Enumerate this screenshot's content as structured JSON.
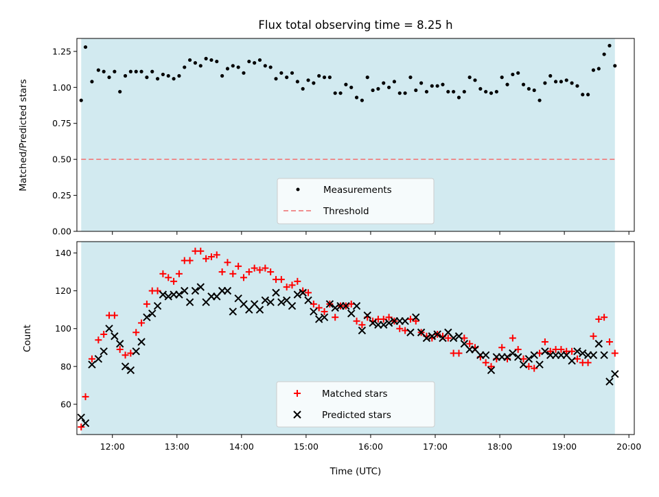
{
  "chart_data": [
    {
      "type": "scatter",
      "title": "Flux total observing time = 8.25 h",
      "xlabel": "",
      "ylabel": "Matched/Predicted stars",
      "xlim": [
        "11:27",
        "20:05"
      ],
      "ylim": [
        0,
        1.34
      ],
      "yticks": [
        "0.00",
        "0.25",
        "0.50",
        "0.75",
        "1.00",
        "1.25"
      ],
      "xticks": [
        "12:00",
        "13:00",
        "14:00",
        "15:00",
        "16:00",
        "17:00",
        "18:00",
        "19:00",
        "20:00"
      ],
      "observing_window": [
        "11:31",
        "19:47"
      ],
      "window_color": "#d2eaf0",
      "threshold": 0.5,
      "threshold_color": "#f08080",
      "legend_position": "lower-center",
      "series": [
        {
          "name": "Measurements",
          "color": "#000000",
          "marker": "dot",
          "x": [
            "11:31",
            "11:35",
            "11:41",
            "11:47",
            "11:52",
            "11:57",
            "12:02",
            "12:07",
            "12:12",
            "12:17",
            "12:22",
            "12:27",
            "12:32",
            "12:37",
            "12:42",
            "12:47",
            "12:52",
            "12:57",
            "13:02",
            "13:07",
            "13:12",
            "13:17",
            "13:22",
            "13:27",
            "13:32",
            "13:37",
            "13:42",
            "13:47",
            "13:52",
            "13:57",
            "14:02",
            "14:07",
            "14:12",
            "14:17",
            "14:22",
            "14:27",
            "14:32",
            "14:37",
            "14:42",
            "14:47",
            "14:52",
            "14:57",
            "15:02",
            "15:07",
            "15:12",
            "15:17",
            "15:22",
            "15:27",
            "15:32",
            "15:37",
            "15:42",
            "15:47",
            "15:52",
            "15:57",
            "16:02",
            "16:07",
            "16:12",
            "16:17",
            "16:22",
            "16:27",
            "16:32",
            "16:37",
            "16:42",
            "16:47",
            "16:52",
            "16:57",
            "17:02",
            "17:07",
            "17:12",
            "17:17",
            "17:22",
            "17:27",
            "17:32",
            "17:37",
            "17:42",
            "17:47",
            "17:52",
            "17:57",
            "18:02",
            "18:07",
            "18:12",
            "18:17",
            "18:22",
            "18:27",
            "18:32",
            "18:37",
            "18:42",
            "18:47",
            "18:52",
            "18:57",
            "19:02",
            "19:07",
            "19:12",
            "19:17",
            "19:22",
            "19:27",
            "19:32",
            "19:37",
            "19:42",
            "19:47"
          ],
          "y": [
            0.91,
            1.28,
            1.04,
            1.12,
            1.11,
            1.07,
            1.11,
            0.97,
            1.08,
            1.11,
            1.11,
            1.11,
            1.07,
            1.11,
            1.06,
            1.09,
            1.08,
            1.06,
            1.08,
            1.14,
            1.19,
            1.17,
            1.15,
            1.2,
            1.19,
            1.18,
            1.08,
            1.13,
            1.15,
            1.14,
            1.1,
            1.18,
            1.17,
            1.19,
            1.15,
            1.14,
            1.06,
            1.1,
            1.07,
            1.1,
            1.04,
            0.99,
            1.05,
            1.03,
            1.08,
            1.07,
            1.07,
            0.96,
            0.96,
            1.02,
            1.0,
            0.93,
            0.91,
            1.07,
            0.98,
            0.99,
            1.03,
            1.0,
            1.04,
            0.96,
            0.96,
            1.07,
            0.98,
            1.03,
            0.97,
            1.01,
            1.01,
            1.02,
            0.97,
            0.97,
            0.93,
            0.97,
            1.07,
            1.05,
            0.99,
            0.97,
            0.96,
            0.97,
            1.07,
            1.02,
            1.09,
            1.1,
            1.02,
            0.99,
            0.98,
            0.91,
            1.03,
            1.08,
            1.04,
            1.04,
            1.05,
            1.03,
            1.01,
            0.95,
            0.95,
            1.12,
            1.13,
            1.23,
            1.29,
            1.15
          ]
        },
        {
          "name": "Threshold",
          "color": "#f08080",
          "style": "dashed"
        }
      ]
    },
    {
      "type": "scatter",
      "title": "",
      "xlabel": "Time (UTC)",
      "ylabel": "Count",
      "xlim": [
        "11:27",
        "20:05"
      ],
      "ylim": [
        44,
        146
      ],
      "yticks": [
        "60",
        "80",
        "100",
        "120",
        "140"
      ],
      "xticks": [
        "12:00",
        "13:00",
        "14:00",
        "15:00",
        "16:00",
        "17:00",
        "18:00",
        "19:00",
        "20:00"
      ],
      "observing_window": [
        "11:31",
        "19:47"
      ],
      "window_color": "#d2eaf0",
      "legend_position": "lower-center",
      "series": [
        {
          "name": "Matched stars",
          "color": "#ff0000",
          "marker": "plus",
          "x": [
            "11:31",
            "11:35",
            "11:41",
            "11:47",
            "11:52",
            "11:57",
            "12:02",
            "12:07",
            "12:12",
            "12:17",
            "12:22",
            "12:27",
            "12:32",
            "12:37",
            "12:42",
            "12:47",
            "12:52",
            "12:57",
            "13:02",
            "13:07",
            "13:12",
            "13:17",
            "13:22",
            "13:27",
            "13:32",
            "13:37",
            "13:42",
            "13:47",
            "13:52",
            "13:57",
            "14:02",
            "14:07",
            "14:12",
            "14:17",
            "14:22",
            "14:27",
            "14:32",
            "14:37",
            "14:42",
            "14:47",
            "14:52",
            "14:57",
            "15:02",
            "15:07",
            "15:12",
            "15:17",
            "15:22",
            "15:27",
            "15:32",
            "15:37",
            "15:42",
            "15:47",
            "15:52",
            "15:57",
            "16:02",
            "16:07",
            "16:12",
            "16:17",
            "16:22",
            "16:27",
            "16:32",
            "16:37",
            "16:42",
            "16:47",
            "16:52",
            "16:57",
            "17:02",
            "17:07",
            "17:12",
            "17:17",
            "17:22",
            "17:27",
            "17:32",
            "17:37",
            "17:42",
            "17:47",
            "17:52",
            "17:57",
            "18:02",
            "18:07",
            "18:12",
            "18:17",
            "18:22",
            "18:27",
            "18:32",
            "18:37",
            "18:42",
            "18:47",
            "18:52",
            "18:57",
            "19:02",
            "19:07",
            "19:12",
            "19:17",
            "19:22",
            "19:27",
            "19:32",
            "19:37",
            "19:42",
            "19:47"
          ],
          "y": [
            48,
            64,
            84,
            94,
            97,
            107,
            107,
            89,
            86,
            87,
            98,
            103,
            113,
            120,
            120,
            129,
            127,
            125,
            129,
            136,
            136,
            141,
            141,
            137,
            138,
            139,
            130,
            135,
            129,
            133,
            127,
            130,
            132,
            131,
            132,
            130,
            126,
            126,
            122,
            123,
            125,
            120,
            119,
            113,
            111,
            109,
            113,
            106,
            112,
            112,
            113,
            104,
            102,
            106,
            104,
            105,
            105,
            106,
            104,
            100,
            99,
            105,
            104,
            98,
            96,
            95,
            97,
            96,
            95,
            87,
            87,
            95,
            92,
            90,
            85,
            82,
            80,
            84,
            90,
            84,
            95,
            89,
            84,
            80,
            79,
            87,
            93,
            88,
            89,
            89,
            88,
            88,
            84,
            82,
            82,
            96,
            105,
            106,
            93,
            87
          ]
        },
        {
          "name": "Predicted stars",
          "color": "#000000",
          "marker": "cross",
          "x": [
            "11:31",
            "11:35",
            "11:41",
            "11:47",
            "11:52",
            "11:57",
            "12:02",
            "12:07",
            "12:12",
            "12:17",
            "12:22",
            "12:27",
            "12:32",
            "12:37",
            "12:42",
            "12:47",
            "12:52",
            "12:57",
            "13:02",
            "13:07",
            "13:12",
            "13:17",
            "13:22",
            "13:27",
            "13:32",
            "13:37",
            "13:42",
            "13:47",
            "13:52",
            "13:57",
            "14:02",
            "14:07",
            "14:12",
            "14:17",
            "14:22",
            "14:27",
            "14:32",
            "14:37",
            "14:42",
            "14:47",
            "14:52",
            "14:57",
            "15:02",
            "15:07",
            "15:12",
            "15:17",
            "15:22",
            "15:27",
            "15:32",
            "15:37",
            "15:42",
            "15:47",
            "15:52",
            "15:57",
            "16:02",
            "16:07",
            "16:12",
            "16:17",
            "16:22",
            "16:27",
            "16:32",
            "16:37",
            "16:42",
            "16:47",
            "16:52",
            "16:57",
            "17:02",
            "17:07",
            "17:12",
            "17:17",
            "17:22",
            "17:27",
            "17:32",
            "17:37",
            "17:42",
            "17:47",
            "17:52",
            "17:57",
            "18:02",
            "18:07",
            "18:12",
            "18:17",
            "18:22",
            "18:27",
            "18:32",
            "18:37",
            "18:42",
            "18:47",
            "18:52",
            "18:57",
            "19:02",
            "19:07",
            "19:12",
            "19:17",
            "19:22",
            "19:27",
            "19:32",
            "19:37",
            "19:42",
            "19:47"
          ],
          "y": [
            53,
            50,
            81,
            84,
            88,
            100,
            96,
            92,
            80,
            78,
            88,
            93,
            106,
            108,
            112,
            118,
            117,
            118,
            118,
            120,
            114,
            120,
            122,
            114,
            117,
            117,
            120,
            120,
            109,
            116,
            113,
            110,
            113,
            110,
            115,
            114,
            119,
            114,
            115,
            112,
            118,
            119,
            115,
            109,
            105,
            106,
            113,
            111,
            112,
            112,
            108,
            112,
            99,
            107,
            103,
            102,
            102,
            103,
            104,
            104,
            104,
            98,
            106,
            98,
            95,
            96,
            97,
            95,
            98,
            95,
            96,
            92,
            89,
            89,
            86,
            86,
            78,
            85,
            85,
            85,
            87,
            85,
            81,
            84,
            86,
            81,
            88,
            86,
            86,
            86,
            86,
            83,
            88,
            87,
            86,
            86,
            92,
            86,
            72,
            76
          ]
        }
      ]
    }
  ]
}
